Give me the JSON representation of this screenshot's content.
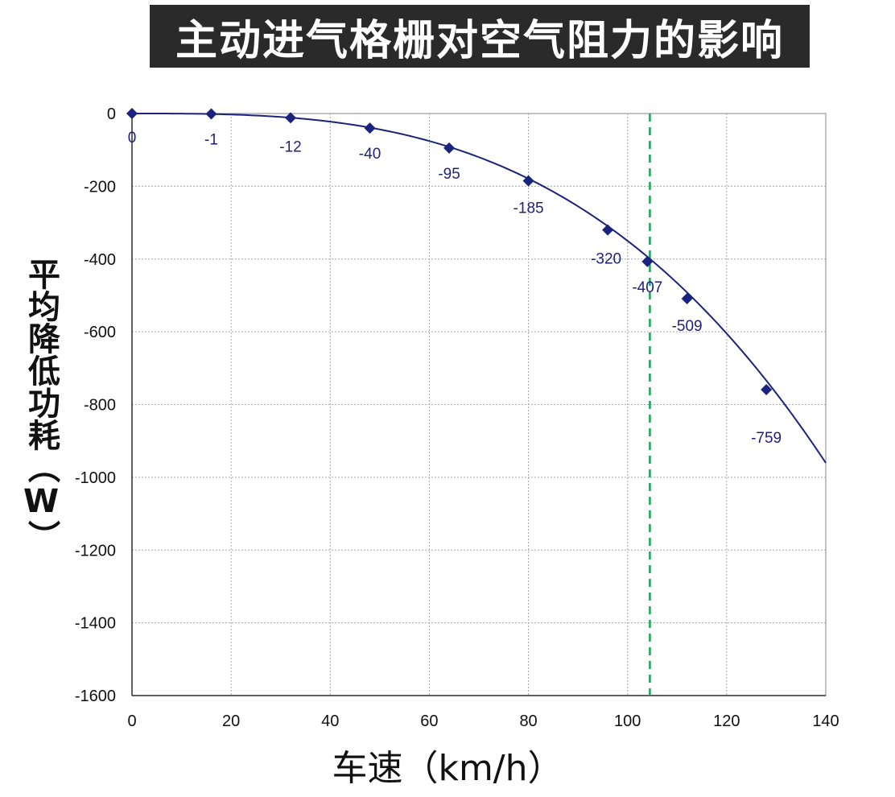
{
  "title": "主动进气格栅对空气阻力的影响",
  "chart_data": {
    "type": "line",
    "title": "主动进气格栅对空气阻力的影响",
    "xlabel": "车速（km/h）",
    "ylabel": "平均降低功耗（W）",
    "xlim": [
      0,
      140
    ],
    "ylim": [
      -1600,
      0
    ],
    "xticks": [
      0,
      20,
      40,
      60,
      80,
      100,
      120,
      140
    ],
    "yticks": [
      0,
      -200,
      -400,
      -600,
      -800,
      -1000,
      -1200,
      -1400,
      -1600
    ],
    "grid": true,
    "series": [
      {
        "x": [
          0,
          16,
          32,
          48,
          64,
          80,
          96,
          104,
          112,
          128
        ],
        "values": [
          0,
          -1,
          -12,
          -40,
          -95,
          -185,
          -320,
          -407,
          -509,
          -759
        ],
        "data_labels": [
          "0",
          "-1",
          "-12",
          "-40",
          "-95",
          "-185",
          "-320",
          "-407",
          "-509",
          "-759"
        ],
        "color": "#1a237e"
      }
    ],
    "fitted_curve": {
      "coefficient": -0.00035,
      "power": 3,
      "x_end": 140
    },
    "reference_line": {
      "x": 104.5,
      "color": "#1aa35a",
      "style": "dashed"
    }
  }
}
